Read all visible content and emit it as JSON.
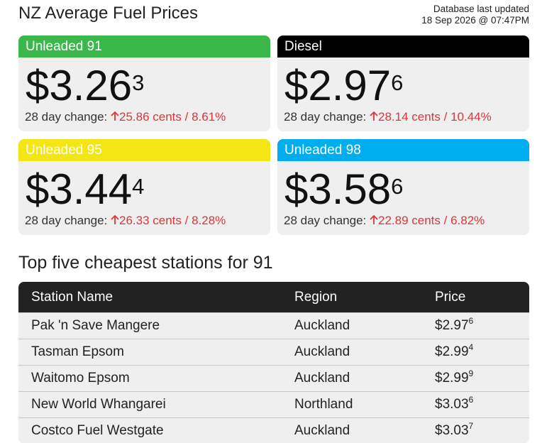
{
  "header": {
    "title": "NZ Average Fuel Prices",
    "updated_label": "Database last updated",
    "updated_time": "18 Sep 2026 @ 07:47PM"
  },
  "cards": [
    {
      "name": "Unleaded 91",
      "price": "$3.26",
      "price_sup": "3",
      "change_label": "28 day change:",
      "change": "25.86 cents / 8.61%"
    },
    {
      "name": "Diesel",
      "price": "$2.97",
      "price_sup": "6",
      "change_label": "28 day change:",
      "change": "28.14 cents / 10.44%"
    },
    {
      "name": "Unleaded 95",
      "price": "$3.44",
      "price_sup": "4",
      "change_label": "28 day change:",
      "change": "26.33 cents / 8.28%"
    },
    {
      "name": "Unleaded 98",
      "price": "$3.58",
      "price_sup": "6",
      "change_label": "28 day change:",
      "change": "22.89 cents / 6.82%"
    }
  ],
  "table": {
    "title": "Top five cheapest stations for 91",
    "columns": [
      "Station Name",
      "Region",
      "Price"
    ],
    "rows": [
      {
        "station": "Pak 'n Save Mangere",
        "region": "Auckland",
        "price": "$2.97",
        "price_sup": "6"
      },
      {
        "station": "Tasman Epsom",
        "region": "Auckland",
        "price": "$2.99",
        "price_sup": "4"
      },
      {
        "station": "Waitomo Epsom",
        "region": "Auckland",
        "price": "$2.99",
        "price_sup": "9"
      },
      {
        "station": "New World Whangarei",
        "region": "Northland",
        "price": "$3.03",
        "price_sup": "6"
      },
      {
        "station": "Costco Fuel Westgate",
        "region": "Auckland",
        "price": "$3.03",
        "price_sup": "7"
      }
    ]
  }
}
